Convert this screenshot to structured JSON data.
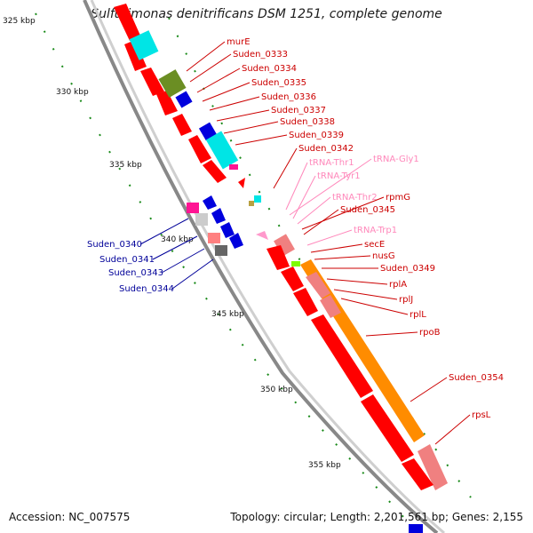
{
  "title": "Sulfurimonas denitrificans DSM 1251, complete genome",
  "footer": {
    "accession": "Accession: NC_007575",
    "summary": "Topology: circular; Length: 2,201,561 bp; Genes: 2,155"
  },
  "colors": {
    "forward_gene": "#ff0000",
    "reverse_gene": "#ff0000",
    "pseudo_pink": "#f08080",
    "trna": "#ff99cc",
    "right_label": "#cc0000",
    "trna_label": "#ff88bb",
    "left_label": "#000099",
    "orange_track": "#ff8c00",
    "tick": "#006400"
  },
  "axis_ticks": [
    "325 kbp",
    "330 kbp",
    "335 kbp",
    "340 kbp",
    "345 kbp",
    "350 kbp",
    "355 kbp"
  ],
  "right_labels": [
    {
      "name": "murE",
      "type": "gene"
    },
    {
      "name": "Suden_0333",
      "type": "gene"
    },
    {
      "name": "Suden_0334",
      "type": "gene"
    },
    {
      "name": "Suden_0335",
      "type": "gene"
    },
    {
      "name": "Suden_0336",
      "type": "gene"
    },
    {
      "name": "Suden_0337",
      "type": "gene"
    },
    {
      "name": "Suden_0338",
      "type": "gene"
    },
    {
      "name": "Suden_0339",
      "type": "gene"
    },
    {
      "name": "Suden_0342",
      "type": "gene"
    },
    {
      "name": "tRNA-Thr1",
      "type": "trna"
    },
    {
      "name": "tRNA-Gly1",
      "type": "trna"
    },
    {
      "name": "tRNA-Tyr1",
      "type": "trna"
    },
    {
      "name": "tRNA-Thr2",
      "type": "trna"
    },
    {
      "name": "rpmG",
      "type": "gene"
    },
    {
      "name": "Suden_0345",
      "type": "gene"
    },
    {
      "name": "tRNA-Trp1",
      "type": "trna"
    },
    {
      "name": "secE",
      "type": "gene"
    },
    {
      "name": "nusG",
      "type": "gene"
    },
    {
      "name": "Suden_0349",
      "type": "gene"
    },
    {
      "name": "rplA",
      "type": "gene"
    },
    {
      "name": "rplJ",
      "type": "gene"
    },
    {
      "name": "rplL",
      "type": "gene"
    },
    {
      "name": "rpoB",
      "type": "gene"
    },
    {
      "name": "Suden_0354",
      "type": "gene"
    },
    {
      "name": "rpsL",
      "type": "gene"
    }
  ],
  "left_labels": [
    {
      "name": "Suden_0340"
    },
    {
      "name": "Suden_0341"
    },
    {
      "name": "Suden_0343"
    },
    {
      "name": "Suden_0344"
    }
  ]
}
